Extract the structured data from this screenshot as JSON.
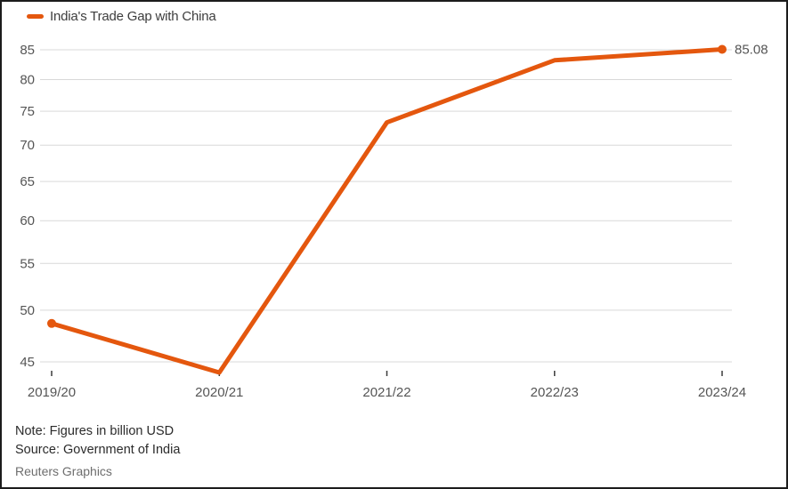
{
  "legend": {
    "label": "India's Trade Gap with China"
  },
  "notes": {
    "note": "Note: Figures in billion USD",
    "source": "Source: Government of India",
    "credit": "Reuters Graphics"
  },
  "colors": {
    "line": "#e4570e",
    "grid": "#d9d9d9",
    "tick_mark": "#3a3a3a",
    "axis_text": "#555555",
    "end_label_text": "#555555",
    "legend_text": "#3d3d3d",
    "note_text": "#2b2b2b",
    "credit_text": "#6e6e6e",
    "border": "#1c1c1c",
    "background": "#ffffff"
  },
  "chart_data": {
    "type": "line",
    "title": "India's Trade Gap with China",
    "categories": [
      "2019/20",
      "2020/21",
      "2021/22",
      "2022/23",
      "2023/24"
    ],
    "series": [
      {
        "name": "India's Trade Gap with China",
        "values": [
          48.66,
          44.03,
          73.31,
          83.2,
          85.08
        ]
      }
    ],
    "xlabel": "",
    "ylabel": "",
    "y_ticks": [
      45,
      50,
      55,
      60,
      65,
      70,
      75,
      80,
      85
    ],
    "ylim": [
      45,
      85
    ],
    "scale": "log",
    "grid": true,
    "legend_position": "top-left",
    "end_label": "85.08",
    "marker_indices": [
      0,
      4
    ],
    "units": "billion USD"
  }
}
